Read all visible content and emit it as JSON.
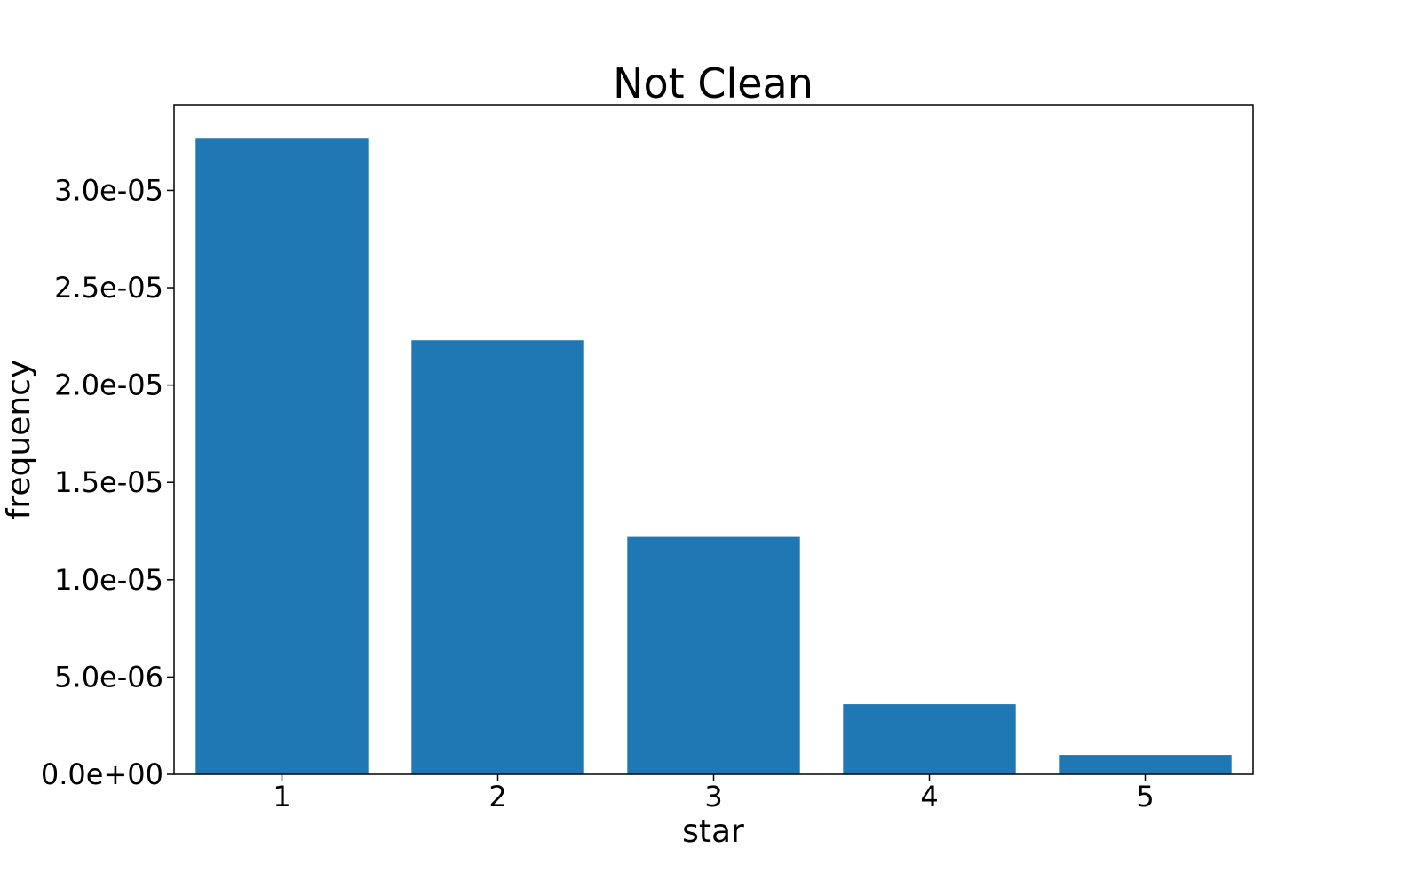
{
  "chart_data": {
    "type": "bar",
    "title": "Not Clean",
    "xlabel": "star",
    "ylabel": "frequency",
    "categories": [
      "1",
      "2",
      "3",
      "4",
      "5"
    ],
    "values": [
      3.27e-05,
      2.23e-05,
      1.22e-05,
      3.6e-06,
      1e-06
    ],
    "ylim": [
      0,
      3.44e-05
    ],
    "yticks": [
      0,
      5e-06,
      1e-05,
      1.5e-05,
      2e-05,
      2.5e-05,
      3e-05
    ],
    "ytick_labels": [
      "0.0e+00",
      "5.0e-06",
      "1.0e-05",
      "1.5e-05",
      "2.0e-05",
      "2.5e-05",
      "3.0e-05"
    ],
    "bar_color": "#1f77b4",
    "grid": false,
    "legend": false
  }
}
